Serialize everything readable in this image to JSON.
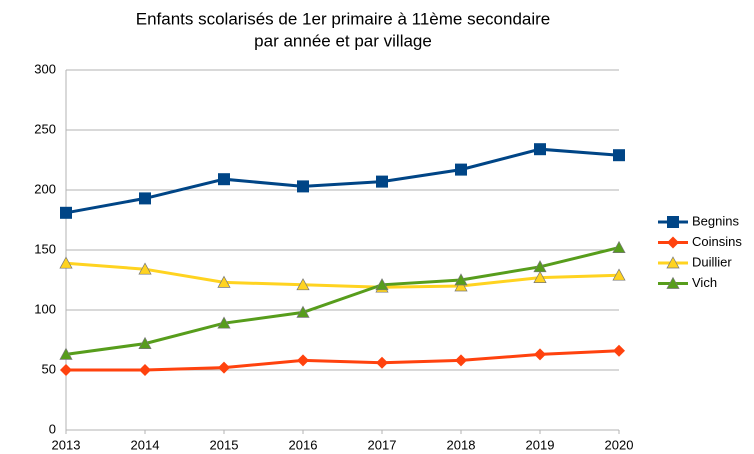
{
  "chart_data": {
    "type": "line",
    "title": [
      "Enfants scolarisés de 1er primaire à 11ème secondaire",
      "par année et par village"
    ],
    "categories": [
      "2013",
      "2014",
      "2015",
      "2016",
      "2017",
      "2018",
      "2019",
      "2020"
    ],
    "series": [
      {
        "name": "Begnins",
        "color": "#004586",
        "marker": "square",
        "values": [
          181,
          193,
          209,
          203,
          207,
          217,
          234,
          229
        ]
      },
      {
        "name": "Coinsins",
        "color": "#ff420e",
        "marker": "diamond",
        "values": [
          50,
          50,
          52,
          58,
          56,
          58,
          63,
          66
        ]
      },
      {
        "name": "Duillier",
        "color": "#ffd320",
        "marker": "triangle",
        "values": [
          139,
          134,
          123,
          121,
          119,
          120,
          127,
          129
        ]
      },
      {
        "name": "Vich",
        "color": "#579d1c",
        "marker": "triangle",
        "values": [
          63,
          72,
          89,
          98,
          121,
          125,
          136,
          152
        ]
      }
    ],
    "ylim": [
      0,
      300
    ],
    "yticks": [
      0,
      50,
      100,
      150,
      200,
      250,
      300
    ],
    "grid": true,
    "legend": "right"
  }
}
